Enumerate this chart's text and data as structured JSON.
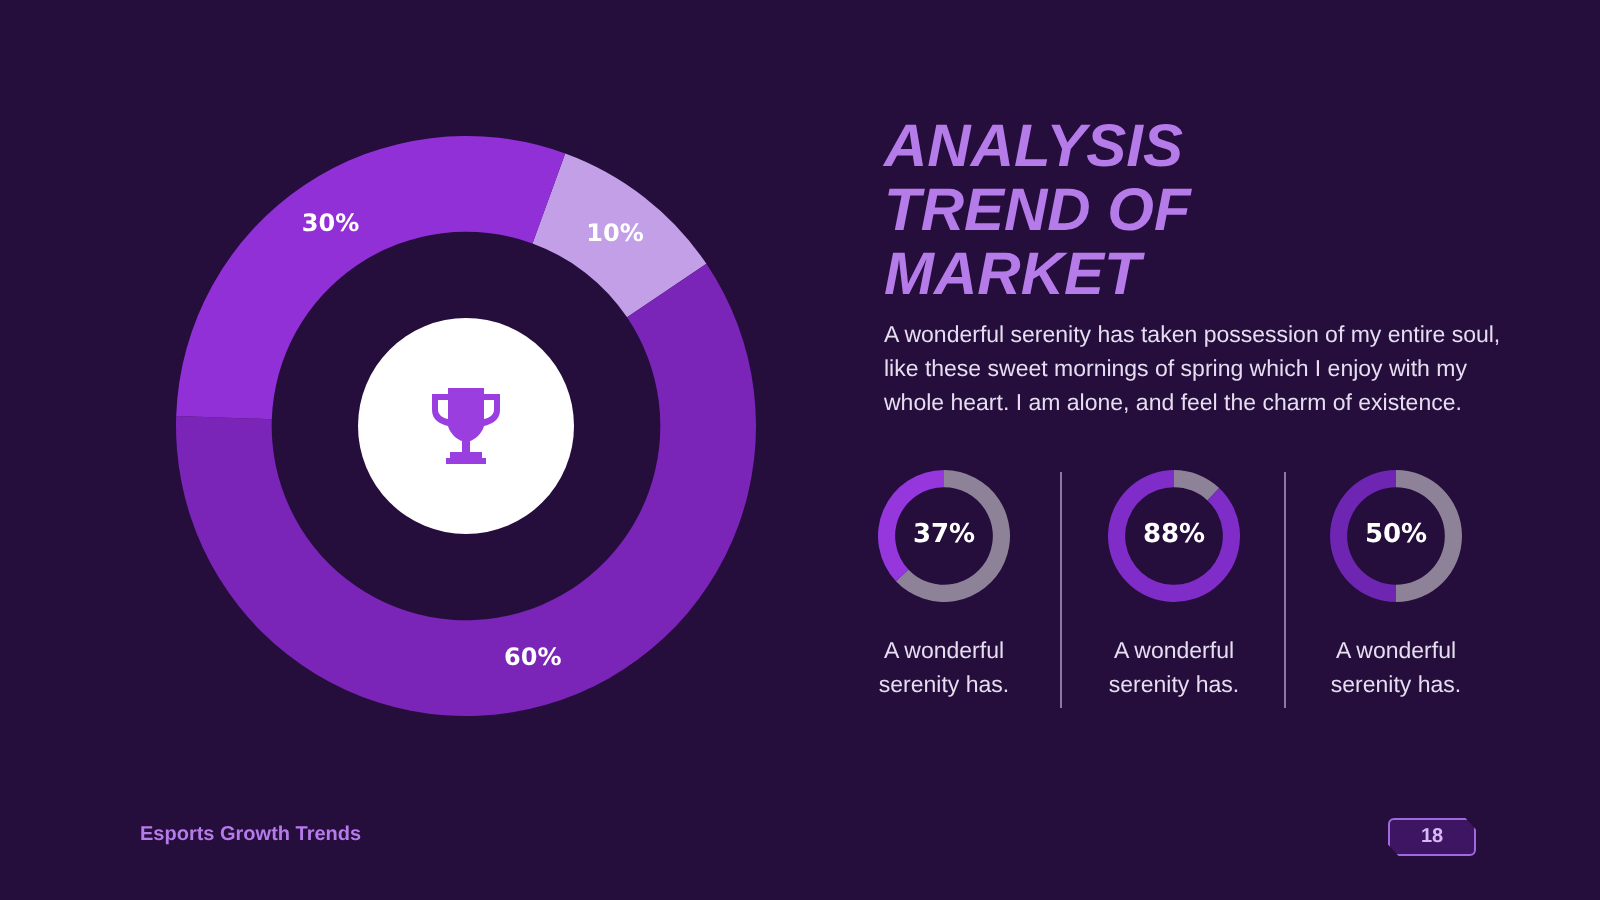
{
  "chart_data": [
    {
      "type": "donut",
      "categories": [
        null,
        null,
        null
      ],
      "values": [
        10,
        60,
        30
      ],
      "colors": [
        "#c39fe7",
        "#7a24b8",
        "#9230d8"
      ],
      "value_labels": [
        "10%",
        "60%",
        "30%"
      ]
    },
    {
      "type": "other",
      "title": "ANALYSIS TREND OF MARKET",
      "subtitle": "A wonderful serenity has taken possession of my entire soul, like these sweet mornings of spring which I enjoy with my whole heart. I am alone, and feel the charm of existence.",
      "annotations": [
        "Esports Growth Trends",
        "18"
      ]
    },
    {
      "type": "donut",
      "categories": [
        null,
        null
      ],
      "values": [
        63,
        37
      ],
      "colors": [
        "#8e8299",
        "#9537dc"
      ],
      "annotations": [
        "37%",
        "A wonderful serenity has."
      ]
    },
    {
      "type": "donut",
      "categories": [
        null,
        null
      ],
      "values": [
        12,
        88
      ],
      "colors": [
        "#8e8299",
        "#7f2cc8"
      ],
      "annotations": [
        "88%",
        "A wonderful serenity has."
      ]
    },
    {
      "type": "donut",
      "categories": [
        null,
        null
      ],
      "values": [
        50,
        50
      ],
      "colors": [
        "#8e8299",
        "#6e25b2"
      ],
      "annotations": [
        "50%",
        "A wonderful serenity has."
      ]
    }
  ]
}
